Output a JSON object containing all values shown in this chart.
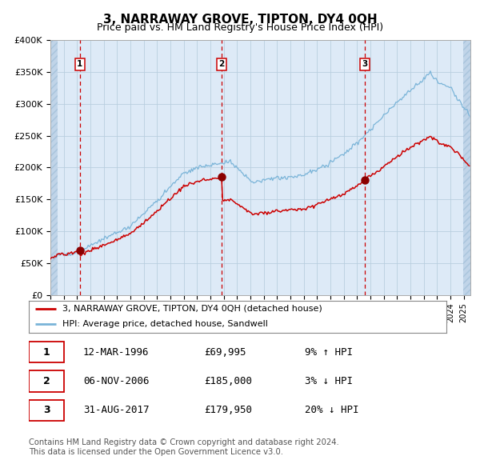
{
  "title": "3, NARRAWAY GROVE, TIPTON, DY4 0QH",
  "subtitle": "Price paid vs. HM Land Registry's House Price Index (HPI)",
  "legend_line1": "3, NARRAWAY GROVE, TIPTON, DY4 0QH (detached house)",
  "legend_line2": "HPI: Average price, detached house, Sandwell",
  "hpi_color": "#7ab4d8",
  "paid_color": "#cc0000",
  "marker_color": "#8b0000",
  "vline_color": "#cc0000",
  "bg_color": "#ddeaf7",
  "hatch_color": "#c0d4e8",
  "grid_color": "#b8cfe0",
  "ylim": [
    0,
    400000
  ],
  "yticks": [
    0,
    50000,
    100000,
    150000,
    200000,
    250000,
    300000,
    350000,
    400000
  ],
  "ytick_labels": [
    "£0",
    "£50K",
    "£100K",
    "£150K",
    "£200K",
    "£250K",
    "£300K",
    "£350K",
    "£400K"
  ],
  "xmin": 1994,
  "xmax": 2025.5,
  "sale_years_f": [
    1996.21,
    2006.83,
    2017.58
  ],
  "sale_prices": [
    69995,
    185000,
    179950
  ],
  "sale_labels": [
    "1",
    "2",
    "3"
  ],
  "footnote1": "Contains HM Land Registry data © Crown copyright and database right 2024.",
  "footnote2": "This data is licensed under the Open Government Licence v3.0.",
  "table_rows": [
    [
      "1",
      "12-MAR-1996",
      "£69,995",
      "9% ↑ HPI"
    ],
    [
      "2",
      "06-NOV-2006",
      "£185,000",
      "3% ↓ HPI"
    ],
    [
      "3",
      "31-AUG-2017",
      "£179,950",
      "20% ↓ HPI"
    ]
  ]
}
